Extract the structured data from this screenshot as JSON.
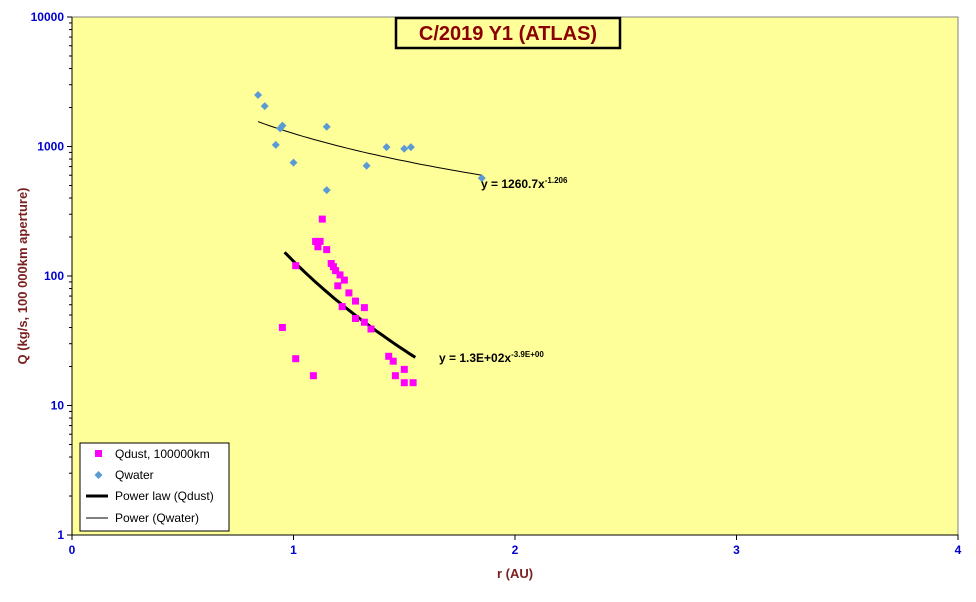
{
  "chart_data": {
    "type": "scatter",
    "title": "C/2019 Y1 (ATLAS)",
    "xlabel": "r (AU)",
    "ylabel": "Q (kg/s, 100 000km aperture)",
    "xlim": [
      0,
      4
    ],
    "ylim": [
      1,
      10000
    ],
    "yscale": "log",
    "x_ticks": [
      "0",
      "1",
      "2",
      "3",
      "4"
    ],
    "y_ticks": [
      "1",
      "10",
      "100",
      "1000",
      "10000"
    ],
    "grid": false,
    "legend_position": "bottom-left",
    "colors": {
      "plot_background": "#ffff99",
      "qdust": "#ff00ff",
      "qwater": "#5b9bd5",
      "axis_text": "#0000cc",
      "title_text": "#8b0000"
    },
    "series": [
      {
        "name": "Qdust, 100000km",
        "marker": "square",
        "x": [
          0.95,
          1.01,
          1.01,
          1.09,
          1.1,
          1.11,
          1.12,
          1.13,
          1.15,
          1.17,
          1.18,
          1.19,
          1.2,
          1.21,
          1.22,
          1.23,
          1.25,
          1.28,
          1.28,
          1.32,
          1.32,
          1.35,
          1.43,
          1.45,
          1.46,
          1.5,
          1.5,
          1.54
        ],
        "y": [
          40,
          23,
          120,
          17,
          185,
          168,
          185,
          275,
          160,
          125,
          118,
          110,
          84,
          102,
          58,
          93,
          74,
          64,
          47,
          57,
          44,
          39,
          24,
          22,
          17,
          19,
          15,
          15
        ]
      },
      {
        "name": "Qwater",
        "marker": "diamond",
        "x": [
          0.84,
          0.87,
          0.92,
          0.94,
          0.95,
          1.0,
          1.15,
          1.15,
          1.33,
          1.42,
          1.5,
          1.53,
          1.85
        ],
        "y": [
          2500,
          2050,
          1030,
          1380,
          1450,
          750,
          1420,
          460,
          710,
          990,
          960,
          990,
          570
        ]
      },
      {
        "name": "Power law (Qdust)",
        "type": "trendline",
        "equation": "y = 1.3E+02x",
        "exponent": "-3.9E+00",
        "x_range": [
          0.96,
          1.55
        ]
      },
      {
        "name": "Power (Qwater)",
        "type": "trendline",
        "equation": "y = 1260.7x",
        "exponent": "-1.206",
        "x_range": [
          0.84,
          1.85
        ]
      }
    ]
  }
}
